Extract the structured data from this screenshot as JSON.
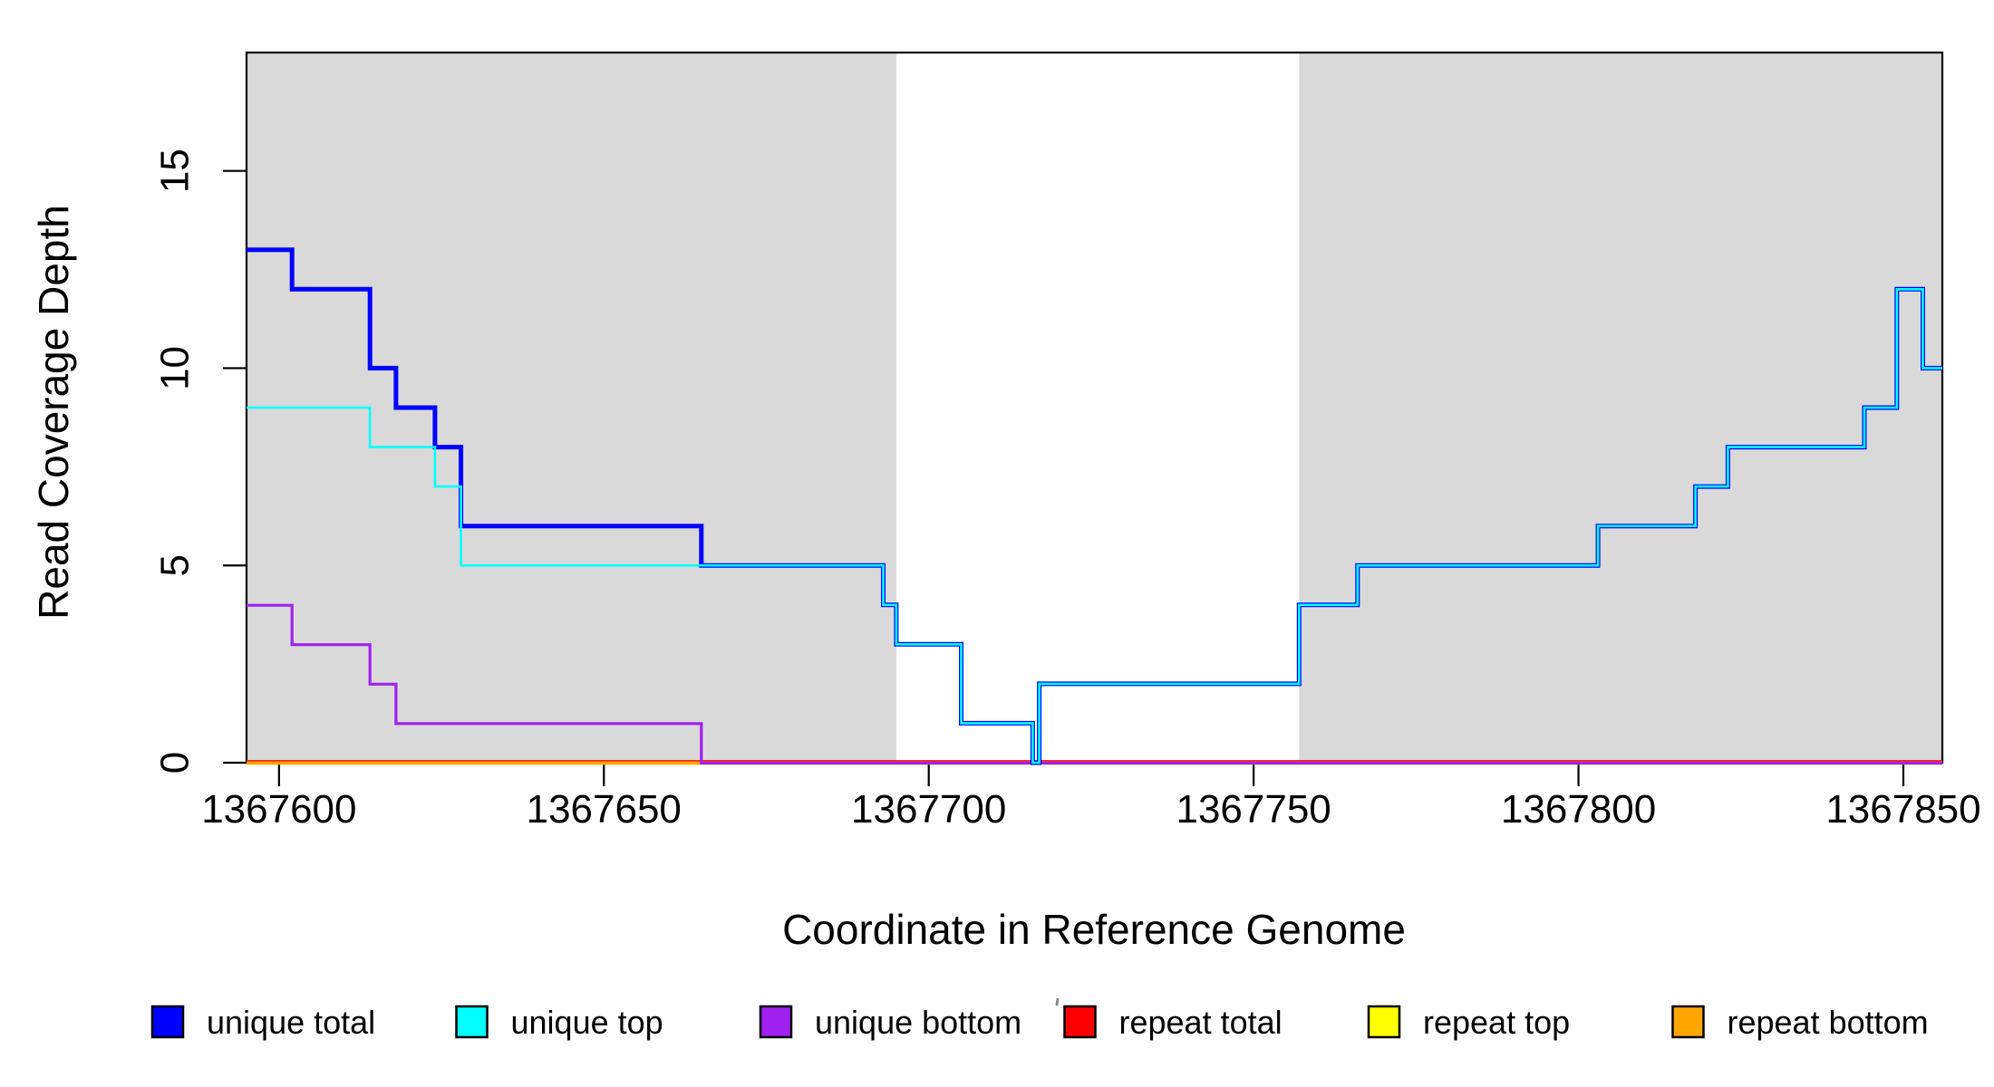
{
  "chart_data": {
    "type": "line",
    "subtype": "step",
    "title": "",
    "xlabel": "Coordinate in Reference Genome",
    "ylabel": "Read Coverage Depth",
    "xlim": [
      1367595,
      1367856
    ],
    "ylim": [
      0,
      18
    ],
    "grid": "off",
    "legend_position": "bottom",
    "x_ticks": {
      "values": [
        1367600,
        1367650,
        1367700,
        1367750,
        1367800,
        1367850
      ],
      "labels": [
        "1367600",
        "1367650",
        "1367700",
        "1367750",
        "1367800",
        "1367850"
      ]
    },
    "y_ticks": {
      "values": [
        0,
        5,
        10,
        15
      ],
      "labels": [
        "0",
        "5",
        "10",
        "15"
      ]
    },
    "shaded_regions": {
      "color": "#D9D9D9",
      "x_ranges": [
        [
          1367595,
          1367695
        ],
        [
          1367757,
          1367856
        ]
      ]
    },
    "series": [
      {
        "name": "repeat total",
        "color": "#FF0000",
        "width": 2.6,
        "dy": -1.6,
        "steps": [
          [
            1367595,
            0
          ],
          [
            1367856,
            0
          ]
        ]
      },
      {
        "name": "repeat top",
        "color": "#FFFF00",
        "width": 3.0,
        "dy": 0.6,
        "steps": [
          [
            1367595,
            0
          ],
          [
            1367856,
            0
          ]
        ]
      },
      {
        "name": "repeat bottom",
        "color": "#FFA500",
        "width": 3.8,
        "dy": 0.4,
        "steps": [
          [
            1367595,
            0
          ],
          [
            1367856,
            0
          ]
        ]
      },
      {
        "name": "unique bottom",
        "color": "#A020F0",
        "width": 3.2,
        "dy": 0.4,
        "steps": [
          [
            1367595,
            4
          ],
          [
            1367602,
            3
          ],
          [
            1367614,
            2
          ],
          [
            1367618,
            1
          ],
          [
            1367665,
            0
          ],
          [
            1367856,
            0
          ]
        ]
      },
      {
        "name": "unique total",
        "color": "#0000FF",
        "width": 5.0,
        "dy": 0,
        "steps": [
          [
            1367595,
            13
          ],
          [
            1367602,
            12
          ],
          [
            1367614,
            10
          ],
          [
            1367618,
            9
          ],
          [
            1367624,
            8
          ],
          [
            1367628,
            6
          ],
          [
            1367665,
            5
          ],
          [
            1367693,
            4
          ],
          [
            1367695,
            3
          ],
          [
            1367705,
            1
          ],
          [
            1367716,
            0
          ],
          [
            1367717,
            2
          ],
          [
            1367757,
            4
          ],
          [
            1367766,
            5
          ],
          [
            1367803,
            6
          ],
          [
            1367818,
            7
          ],
          [
            1367823,
            8
          ],
          [
            1367844,
            9
          ],
          [
            1367849,
            12
          ],
          [
            1367853,
            10
          ],
          [
            1367856,
            10
          ]
        ]
      },
      {
        "name": "unique top",
        "color": "#00FFFF",
        "width": 2.6,
        "dy": 0,
        "steps": [
          [
            1367595,
            9
          ],
          [
            1367614,
            8
          ],
          [
            1367624,
            7
          ],
          [
            1367628,
            5
          ],
          [
            1367665,
            5
          ],
          [
            1367693,
            4
          ],
          [
            1367695,
            3
          ],
          [
            1367705,
            1
          ],
          [
            1367716,
            0
          ],
          [
            1367717,
            2
          ],
          [
            1367757,
            4
          ],
          [
            1367766,
            5
          ],
          [
            1367803,
            6
          ],
          [
            1367818,
            7
          ],
          [
            1367823,
            8
          ],
          [
            1367844,
            9
          ],
          [
            1367849,
            12
          ],
          [
            1367853,
            10
          ],
          [
            1367856,
            10
          ]
        ]
      }
    ],
    "legend": [
      {
        "label": "unique total",
        "color": "#0000FF"
      },
      {
        "label": "unique top",
        "color": "#00FFFF"
      },
      {
        "label": "unique bottom",
        "color": "#A020F0"
      },
      {
        "label": "repeat total",
        "color": "#FF0000"
      },
      {
        "label": "repeat top",
        "color": "#FFFF00"
      },
      {
        "label": "repeat bottom",
        "color": "#FFA500"
      }
    ]
  }
}
